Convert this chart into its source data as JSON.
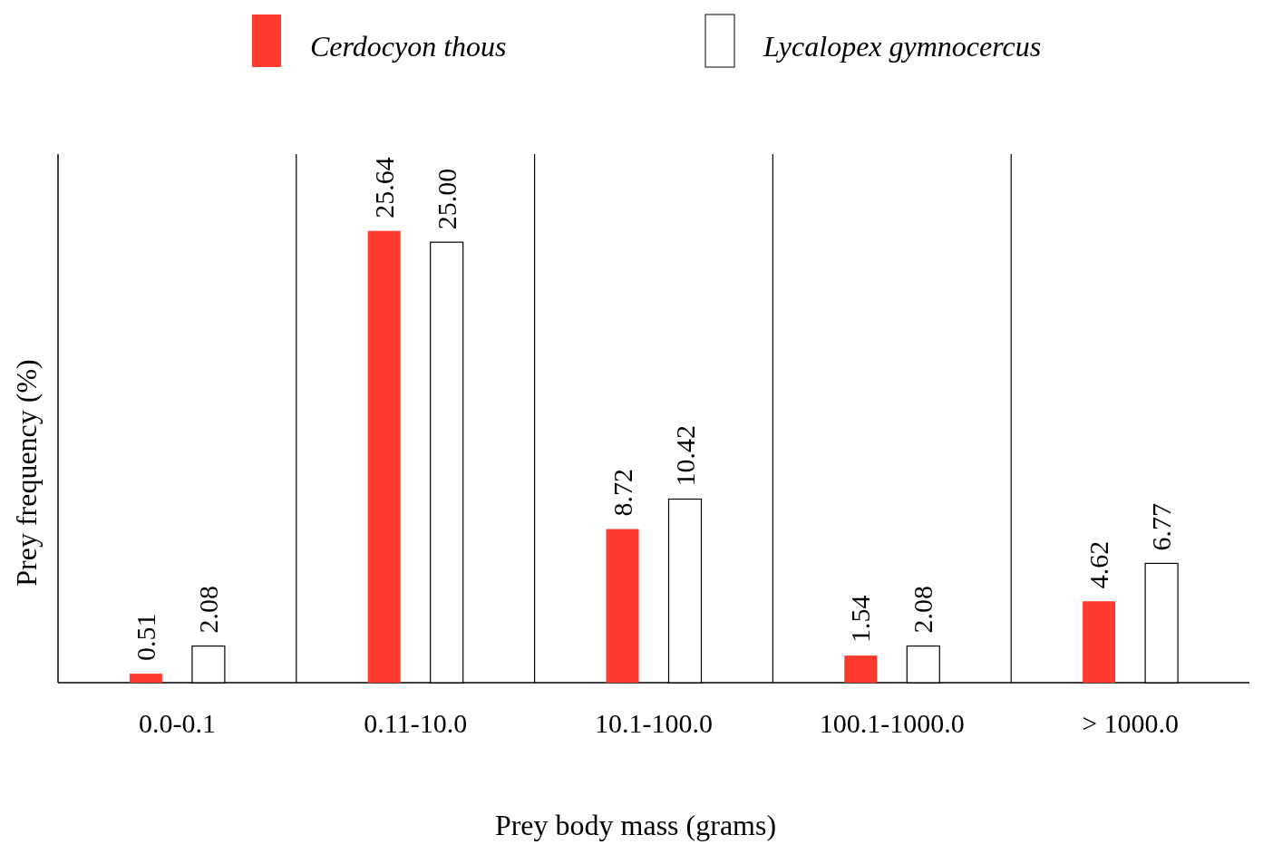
{
  "chart_data": {
    "type": "bar",
    "xlabel": "Prey body mass (grams)",
    "ylabel": "Prey frequency (%)",
    "categories": [
      "0.0-0.1",
      "0.11-10.0",
      "10.1-100.0",
      "100.1-1000.0",
      "> 1000.0"
    ],
    "series": [
      {
        "name": "Cerdocyon thous",
        "color": "#ff3b2f",
        "values": [
          0.51,
          25.64,
          8.72,
          1.54,
          4.62
        ],
        "value_labels": [
          "0.51",
          "25.64",
          "8.72",
          "1.54",
          "4.62"
        ]
      },
      {
        "name": "Lycalopex gymnocercus",
        "color": "#ffffff",
        "values": [
          2.08,
          25.0,
          10.42,
          2.08,
          6.77
        ],
        "value_labels": [
          "2.08",
          "25.00",
          "10.42",
          "2.08",
          "6.77"
        ]
      }
    ],
    "legend": "top"
  }
}
